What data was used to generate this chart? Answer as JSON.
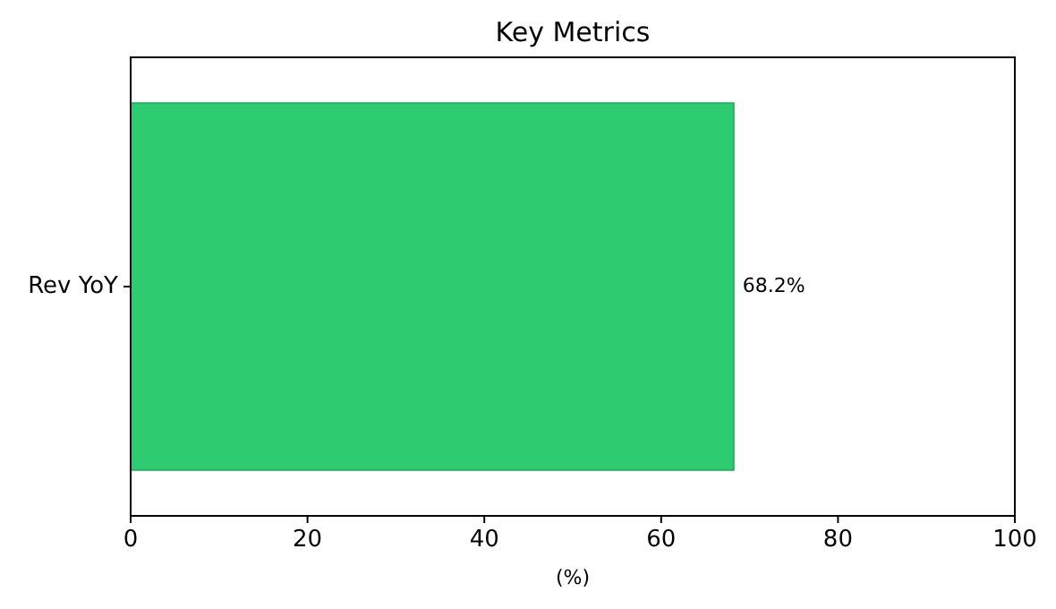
{
  "chart_data": {
    "type": "bar",
    "orientation": "horizontal",
    "title": "Key Metrics",
    "xlabel": "(%)",
    "categories": [
      "Rev YoY"
    ],
    "values": [
      68.2
    ],
    "value_labels": [
      "68.2%"
    ],
    "color": "#2ecc71",
    "xlim": [
      0,
      100
    ],
    "xticks": [
      0,
      20,
      40,
      60,
      80,
      100
    ],
    "grid": false
  }
}
